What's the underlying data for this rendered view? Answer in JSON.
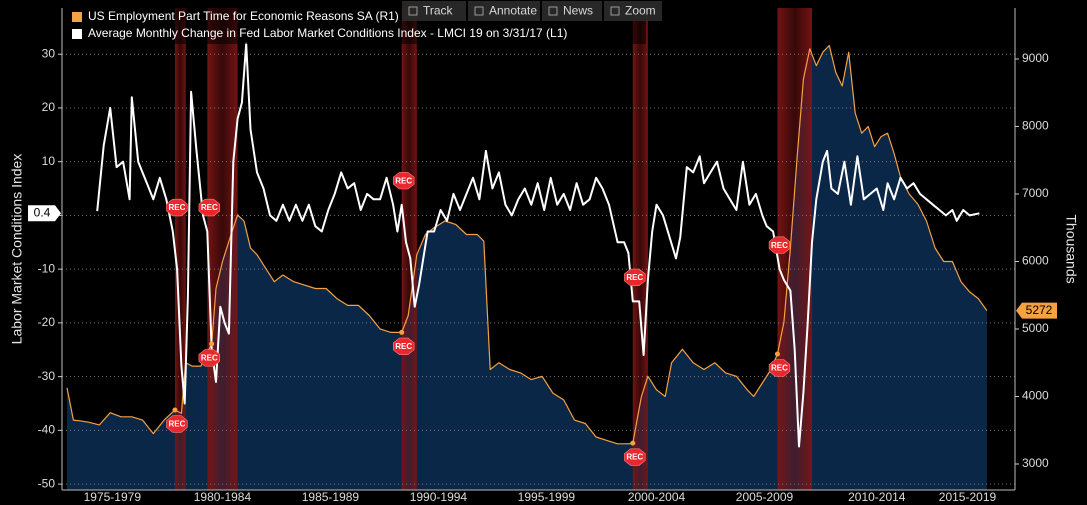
{
  "chart_data": {
    "type": "line",
    "legend": "top-left",
    "ylabel": "Labor Market Conditions Index",
    "y2label": "Thousands",
    "xlim": [
      1974.77,
      2018.9
    ],
    "xticks": [
      {
        "value": 1977.1,
        "label": "1975-1979"
      },
      {
        "value": 1982.2,
        "label": "1980-1984"
      },
      {
        "value": 1987.2,
        "label": "1985-1989"
      },
      {
        "value": 1992.2,
        "label": "1990-1994"
      },
      {
        "value": 1997.2,
        "label": "1995-1999"
      },
      {
        "value": 2002.3,
        "label": "2000-2004"
      },
      {
        "value": 2007.3,
        "label": "2005-2009"
      },
      {
        "value": 2012.5,
        "label": "2010-2014"
      },
      {
        "value": 2016.7,
        "label": "2015-2019"
      }
    ],
    "ylim": [
      -51.1,
      38.6
    ],
    "yticks": [
      -50,
      -40,
      -30,
      -20,
      -10,
      0,
      10,
      20,
      30
    ],
    "y2lim": [
      2615,
      9755
    ],
    "y2ticks": [
      3000,
      4000,
      5000,
      6000,
      7000,
      8000,
      9000
    ],
    "grid": true,
    "recession_label": "REC",
    "recession_color": "#7a1414",
    "recessions": [
      [
        1980.0,
        1980.5
      ],
      [
        1981.5,
        1982.9
      ],
      [
        1990.5,
        1991.2
      ],
      [
        2001.2,
        2001.9
      ],
      [
        2007.9,
        2009.5
      ]
    ],
    "series": [
      {
        "name": "Average Monthly Change in Fed Labor Market Conditions Index - LMCI 19  on 3/31/17 (L1)",
        "color": "#ffffff",
        "axis": "y",
        "x": [
          1976.4,
          1976.7,
          1977.0,
          1977.3,
          1977.6,
          1977.9,
          1978.0,
          1978.3,
          1978.7,
          1979.0,
          1979.3,
          1979.6,
          1979.9,
          1980.1,
          1980.3,
          1980.45,
          1980.6,
          1980.75,
          1981.0,
          1981.3,
          1981.5,
          1981.7,
          1981.9,
          1982.1,
          1982.3,
          1982.5,
          1982.7,
          1982.9,
          1983.1,
          1983.3,
          1983.5,
          1983.8,
          1984.1,
          1984.4,
          1984.7,
          1985.0,
          1985.3,
          1985.6,
          1985.9,
          1986.2,
          1986.5,
          1986.8,
          1987.1,
          1987.4,
          1987.7,
          1988.0,
          1988.3,
          1988.6,
          1988.9,
          1989.2,
          1989.5,
          1989.8,
          1990.1,
          1990.3,
          1990.5,
          1990.7,
          1990.9,
          1991.1,
          1991.3,
          1991.5,
          1991.7,
          1992.0,
          1992.3,
          1992.6,
          1992.9,
          1993.2,
          1993.5,
          1993.8,
          1994.1,
          1994.4,
          1994.7,
          1995.0,
          1995.3,
          1995.6,
          1995.9,
          1996.2,
          1996.5,
          1996.8,
          1997.1,
          1997.4,
          1997.7,
          1998.0,
          1998.3,
          1998.6,
          1998.9,
          1999.2,
          1999.5,
          1999.8,
          2000.1,
          2000.5,
          2000.8,
          2001.0,
          2001.2,
          2001.5,
          2001.7,
          2001.9,
          2002.1,
          2002.3,
          2002.6,
          2002.9,
          2003.2,
          2003.4,
          2003.7,
          2004.0,
          2004.3,
          2004.5,
          2004.8,
          2005.1,
          2005.4,
          2005.7,
          2006.0,
          2006.3,
          2006.6,
          2006.9,
          2007.2,
          2007.4,
          2007.7,
          2008.0,
          2008.2,
          2008.5,
          2008.7,
          2008.9,
          2009.1,
          2009.3,
          2009.5,
          2009.7,
          2010.0,
          2010.2,
          2010.4,
          2010.7,
          2011.0,
          2011.3,
          2011.6,
          2011.9,
          2012.2,
          2012.5,
          2012.8,
          2013.0,
          2013.3,
          2013.6,
          2013.9,
          2014.2,
          2014.5,
          2014.8,
          2015.1,
          2015.4,
          2015.7,
          2016.0,
          2016.2,
          2016.5,
          2016.8,
          2017.25
        ],
        "values": [
          0.8,
          13,
          20,
          9,
          10,
          3,
          22,
          10,
          6,
          3,
          7,
          3,
          -3,
          -10,
          -28,
          -35,
          -15,
          23,
          12,
          0,
          -3,
          -25,
          -31,
          -17,
          -20,
          -22,
          10,
          18,
          21,
          32,
          16,
          8,
          5,
          0,
          -1,
          2,
          -1,
          2,
          -1,
          2,
          -2,
          -3,
          1,
          4,
          8,
          5,
          6,
          1,
          4,
          3,
          3,
          7,
          2,
          -3,
          2,
          -5,
          -8,
          -17,
          -13,
          -8,
          -3,
          -3,
          1,
          -1,
          4,
          1,
          4,
          7,
          3,
          12,
          5,
          8,
          2,
          0,
          3,
          5,
          2,
          6,
          1,
          7,
          2,
          4,
          1,
          6,
          2,
          3,
          7,
          5,
          2,
          -5,
          -5,
          -7,
          -16,
          -16,
          -26,
          -12,
          -3,
          2,
          0,
          -4,
          -8,
          -4,
          9,
          8,
          11,
          6,
          8,
          10,
          5,
          3,
          1,
          10,
          2,
          4,
          0,
          -2,
          -3,
          -10,
          -12,
          -14,
          -25,
          -43,
          -33,
          -20,
          -5,
          3,
          10,
          12,
          5,
          4,
          10,
          2,
          11,
          3,
          4,
          5,
          1,
          6,
          3,
          7,
          5,
          6,
          4,
          3,
          2,
          1,
          0,
          1,
          -1,
          1,
          0,
          0.4
        ]
      },
      {
        "name": "US Employment Part Time for Economic Reasons SA  (R1)",
        "color": "#f5a142",
        "area_color": "#0b2747",
        "axis": "y2",
        "x": [
          1975.0,
          1975.3,
          1975.6,
          1976.0,
          1976.5,
          1977.0,
          1977.5,
          1978.0,
          1978.5,
          1979.0,
          1979.5,
          1980.0,
          1980.3,
          1980.5,
          1980.8,
          1981.2,
          1981.7,
          1981.9,
          1982.2,
          1982.6,
          1982.9,
          1983.2,
          1983.5,
          1983.8,
          1984.2,
          1984.6,
          1985.0,
          1985.5,
          1986.0,
          1986.5,
          1987.0,
          1987.5,
          1988.0,
          1988.5,
          1989.0,
          1989.5,
          1990.0,
          1990.5,
          1990.8,
          1991.2,
          1991.6,
          1992.0,
          1992.5,
          1993.0,
          1993.5,
          1994.0,
          1994.3,
          1994.6,
          1995.0,
          1995.5,
          1996.0,
          1996.5,
          1997.0,
          1997.5,
          1998.0,
          1998.5,
          1999.0,
          1999.5,
          2000.0,
          2000.5,
          2001.0,
          2001.2,
          2001.6,
          2001.9,
          2002.3,
          2002.7,
          2003.0,
          2003.5,
          2004.0,
          2004.5,
          2005.0,
          2005.5,
          2006.0,
          2006.5,
          2006.8,
          2007.2,
          2007.6,
          2007.9,
          2008.2,
          2008.5,
          2008.8,
          2009.1,
          2009.4,
          2009.7,
          2010.0,
          2010.3,
          2010.6,
          2010.9,
          2011.2,
          2011.5,
          2011.8,
          2012.1,
          2012.4,
          2012.7,
          2013.0,
          2013.3,
          2013.6,
          2014.0,
          2014.4,
          2014.8,
          2015.2,
          2015.6,
          2016.0,
          2016.4,
          2016.8,
          2017.2,
          2017.6
        ],
        "values": [
          4130,
          3650,
          3640,
          3620,
          3580,
          3760,
          3700,
          3700,
          3650,
          3450,
          3650,
          3800,
          3750,
          4500,
          4450,
          4450,
          4780,
          5600,
          6000,
          6400,
          6690,
          6600,
          6200,
          6100,
          5900,
          5700,
          5800,
          5700,
          5650,
          5600,
          5600,
          5450,
          5350,
          5350,
          5200,
          5000,
          4950,
          4950,
          5200,
          6100,
          6400,
          6500,
          6600,
          6550,
          6400,
          6400,
          6300,
          4400,
          4500,
          4400,
          4350,
          4250,
          4300,
          4050,
          3950,
          3650,
          3600,
          3400,
          3350,
          3300,
          3300,
          3310,
          4000,
          4300,
          4100,
          4000,
          4500,
          4700,
          4500,
          4400,
          4500,
          4350,
          4300,
          4100,
          4000,
          4200,
          4400,
          4630,
          5100,
          6200,
          7500,
          8700,
          9150,
          8900,
          9100,
          9200,
          8800,
          8600,
          9100,
          8200,
          7900,
          8000,
          7700,
          7850,
          7900,
          7600,
          7250,
          7000,
          6850,
          6600,
          6200,
          6000,
          6000,
          5700,
          5550,
          5450,
          5272
        ]
      }
    ]
  },
  "toolbar": [
    "Track",
    "Annotate",
    "News",
    "Zoom"
  ]
}
